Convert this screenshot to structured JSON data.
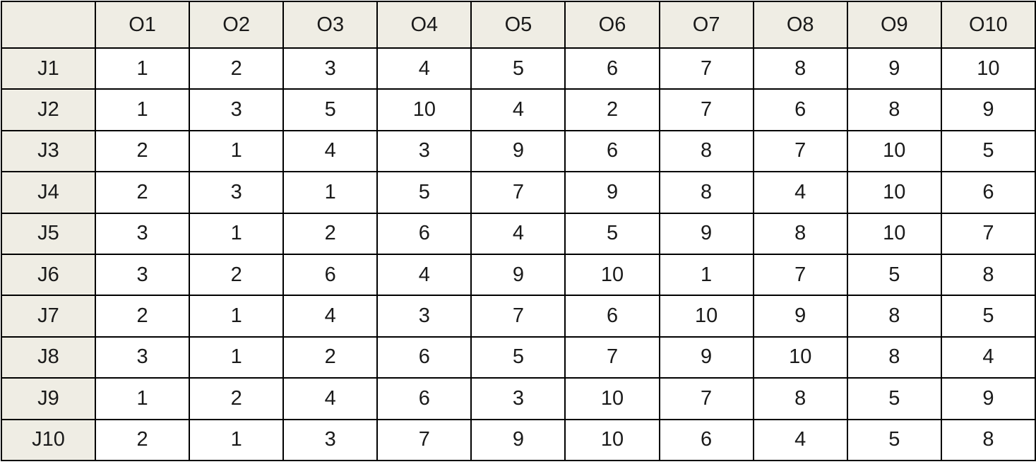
{
  "chart_data": {
    "type": "table",
    "corner": "",
    "columns": [
      "O1",
      "O2",
      "O3",
      "O4",
      "O5",
      "O6",
      "O7",
      "O8",
      "O9",
      "O10"
    ],
    "rows": [
      {
        "label": "J1",
        "values": [
          1,
          2,
          3,
          4,
          5,
          6,
          7,
          8,
          9,
          10
        ]
      },
      {
        "label": "J2",
        "values": [
          1,
          3,
          5,
          10,
          4,
          2,
          7,
          6,
          8,
          9
        ]
      },
      {
        "label": "J3",
        "values": [
          2,
          1,
          4,
          3,
          9,
          6,
          8,
          7,
          10,
          5
        ]
      },
      {
        "label": "J4",
        "values": [
          2,
          3,
          1,
          5,
          7,
          9,
          8,
          4,
          10,
          6
        ]
      },
      {
        "label": "J5",
        "values": [
          3,
          1,
          2,
          6,
          4,
          5,
          9,
          8,
          10,
          7
        ]
      },
      {
        "label": "J6",
        "values": [
          3,
          2,
          6,
          4,
          9,
          10,
          1,
          7,
          5,
          8
        ]
      },
      {
        "label": "J7",
        "values": [
          2,
          1,
          4,
          3,
          7,
          6,
          10,
          9,
          8,
          5
        ]
      },
      {
        "label": "J8",
        "values": [
          3,
          1,
          2,
          6,
          5,
          7,
          9,
          10,
          8,
          4
        ]
      },
      {
        "label": "J9",
        "values": [
          1,
          2,
          4,
          6,
          3,
          10,
          7,
          8,
          5,
          9
        ]
      },
      {
        "label": "J10",
        "values": [
          2,
          1,
          3,
          7,
          9,
          10,
          6,
          4,
          5,
          8
        ]
      }
    ],
    "colors": {
      "header_bg": "#efede4",
      "cell_bg": "#ffffff",
      "border": "#000000",
      "text": "#1a1a1a"
    }
  }
}
